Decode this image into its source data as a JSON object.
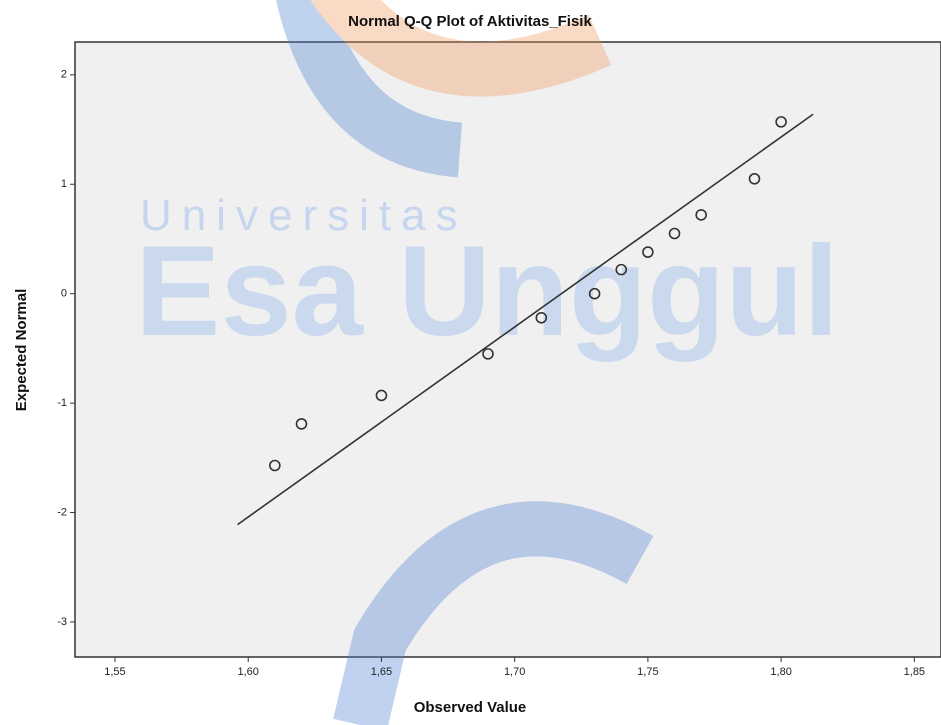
{
  "chart_data": {
    "type": "scatter",
    "title": "Normal Q-Q Plot of Aktivitas_Fisik",
    "x_label": "Observed Value",
    "y_label": "Expected Normal",
    "watermark": [
      "Universitas",
      "Esa Unggul"
    ],
    "x": [
      1.61,
      1.62,
      1.65,
      1.69,
      1.71,
      1.73,
      1.74,
      1.75,
      1.76,
      1.77,
      1.79,
      1.8
    ],
    "values": [
      -1.57,
      -1.19,
      -0.93,
      -0.55,
      -0.22,
      0,
      0.22,
      0.38,
      0.55,
      0.72,
      1.05,
      1.57
    ],
    "color": "#333333",
    "reference_line": {
      "x": [
        1.596,
        1.812
      ],
      "y": [
        -2.11,
        1.64
      ]
    },
    "xlim": [
      1.535,
      1.86
    ],
    "ylim": [
      -3.32,
      2.3
    ],
    "xticks": [
      {
        "value": 1.55,
        "label": "1,55"
      },
      {
        "value": 1.6,
        "label": "1,60"
      },
      {
        "value": 1.65,
        "label": "1,65"
      },
      {
        "value": 1.7,
        "label": "1,70"
      },
      {
        "value": 1.75,
        "label": "1,75"
      },
      {
        "value": 1.8,
        "label": "1,80"
      },
      {
        "value": 1.85,
        "label": "1,85"
      }
    ],
    "yticks": [
      2,
      1,
      0,
      -1,
      -2,
      -3
    ]
  }
}
